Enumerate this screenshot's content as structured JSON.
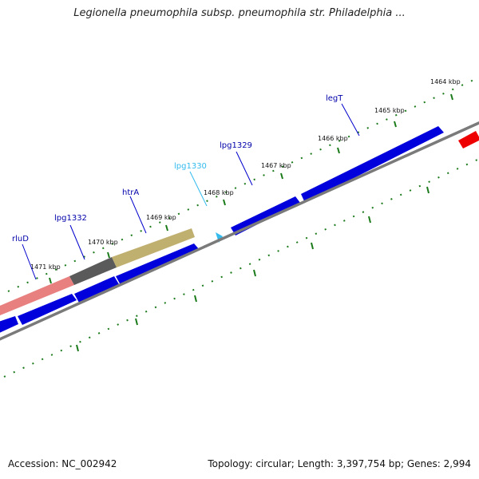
{
  "title": "Legionella pneumophila subsp. pneumophila str. Philadelphia ...",
  "accession": "Accession: NC_002942",
  "stats": "Topology: circular; Length: 3,397,754 bp; Genes: 2,994",
  "ticks": [
    "1471 kbp",
    "1470 kbp",
    "1469 kbp",
    "1468 kbp",
    "1467 kbp",
    "1466 kbp",
    "1465 kbp",
    "1464 kbp"
  ],
  "gene_labels": [
    {
      "name": "rluD",
      "color": "#0000aa"
    },
    {
      "name": "lpg1332",
      "color": "#0000aa"
    },
    {
      "name": "htrA",
      "color": "#0000aa"
    },
    {
      "name": "lpg1330",
      "color": "#33bbee"
    },
    {
      "name": "lpg1329",
      "color": "#0000aa"
    },
    {
      "name": "legT",
      "color": "#0000aa"
    }
  ],
  "colors": {
    "cds_forward": "#0000dd",
    "backbone": "#7a7a7a",
    "tick_marks": "#1a7a1a",
    "highlight_pink": "#e88080",
    "highlight_gray": "#5a5a5a",
    "highlight_olive": "#c0b070",
    "small_feature": "#33bbee",
    "red_feature": "#ee0000"
  }
}
